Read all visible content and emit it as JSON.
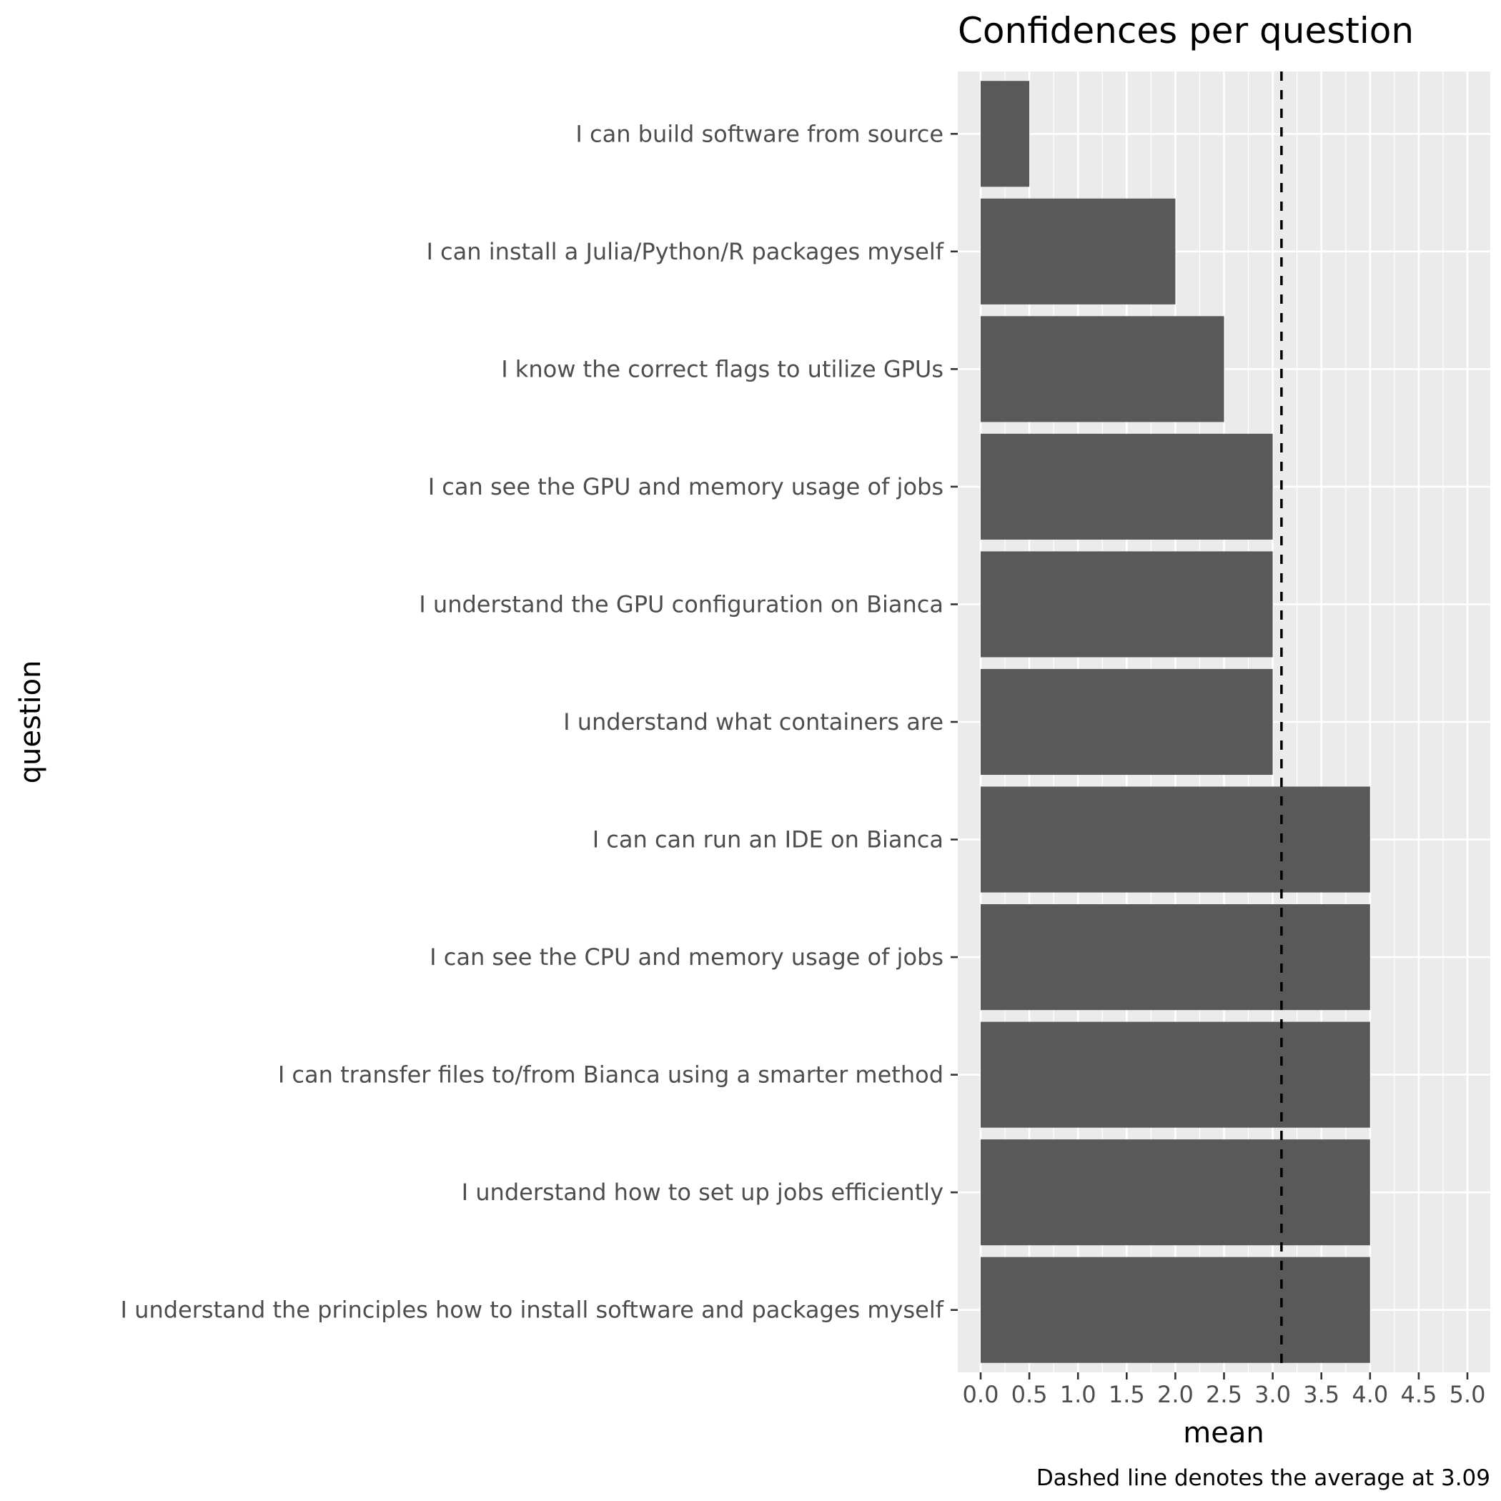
{
  "chart_data": {
    "type": "bar",
    "orientation": "horizontal",
    "title": "Confidences per question",
    "xlabel": "mean",
    "ylabel": "question",
    "caption": "Dashed line denotes the average at 3.09",
    "categories": [
      "I can build software from source",
      "I can install a Julia/Python/R packages myself",
      "I know the correct flags to utilize GPUs",
      "I can see the GPU and memory usage of jobs",
      "I understand the GPU configuration on Bianca",
      "I understand what containers are",
      "I can can run an IDE on Bianca",
      "I can see the CPU and memory usage of jobs",
      "I can transfer files to/from Bianca using a smarter method",
      "I understand how to set up jobs efficiently",
      "I understand the principles how to install software and packages myself"
    ],
    "values": [
      0.5,
      2.0,
      2.5,
      3.0,
      3.0,
      3.0,
      4.0,
      4.0,
      4.0,
      4.0,
      4.0
    ],
    "xlim": [
      0,
      5
    ],
    "xticks": [
      "0.0",
      "0.5",
      "1.0",
      "1.5",
      "2.0",
      "2.5",
      "3.0",
      "3.5",
      "4.0",
      "4.5",
      "5.0"
    ],
    "reference_line": {
      "value": 3.09,
      "style": "dashed"
    },
    "grid": true,
    "colors": {
      "bar": "#595959",
      "panel": "#ebebeb",
      "grid": "#ffffff",
      "reference_line": "#000000"
    }
  }
}
